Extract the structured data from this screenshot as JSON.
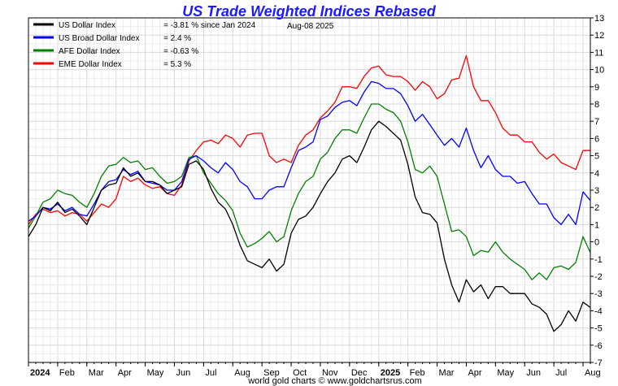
{
  "chart_data": {
    "type": "line",
    "title": "US Trade Weighted Indices Rebased",
    "date_label": "Aug-08  2025",
    "footer": "world gold charts © www.goldchartsrus.com",
    "grid": true,
    "legend_placement": "top-left",
    "ylim": [
      -7,
      13
    ],
    "yticks": [
      -7,
      -6,
      -5,
      -4,
      -3,
      -2,
      -1,
      0,
      1,
      2,
      3,
      4,
      5,
      6,
      7,
      8,
      9,
      10,
      11,
      12,
      13
    ],
    "xlim": [
      0,
      19.25
    ],
    "xticks": [
      {
        "label": "2024",
        "pos": 0,
        "bold": true
      },
      {
        "label": "Feb",
        "pos": 1
      },
      {
        "label": "Mar",
        "pos": 2
      },
      {
        "label": "Apr",
        "pos": 3
      },
      {
        "label": "May",
        "pos": 4
      },
      {
        "label": "Jun",
        "pos": 5
      },
      {
        "label": "Jul",
        "pos": 6
      },
      {
        "label": "Aug",
        "pos": 7
      },
      {
        "label": "Sep",
        "pos": 8
      },
      {
        "label": "Oct",
        "pos": 9
      },
      {
        "label": "Nov",
        "pos": 10
      },
      {
        "label": "Dec",
        "pos": 11
      },
      {
        "label": "2025",
        "pos": 12,
        "bold": true
      },
      {
        "label": "Feb",
        "pos": 13
      },
      {
        "label": "Mar",
        "pos": 14
      },
      {
        "label": "Apr",
        "pos": 15
      },
      {
        "label": "May",
        "pos": 16
      },
      {
        "label": "Jun",
        "pos": 17
      },
      {
        "label": "Jul",
        "pos": 18
      },
      {
        "label": "Aug",
        "pos": 19
      }
    ],
    "series": [
      {
        "name": "US Dollar Index",
        "legend_value": "= -3.81 % since Jan 2024",
        "color": "#000000",
        "x": [
          0,
          0.25,
          0.5,
          0.75,
          1,
          1.25,
          1.5,
          1.75,
          2,
          2.25,
          2.5,
          2.75,
          3,
          3.25,
          3.5,
          3.75,
          4,
          4.25,
          4.5,
          4.75,
          5,
          5.25,
          5.5,
          5.75,
          6,
          6.25,
          6.5,
          6.75,
          7,
          7.25,
          7.5,
          7.75,
          8,
          8.25,
          8.5,
          8.75,
          9,
          9.25,
          9.5,
          9.75,
          10,
          10.25,
          10.5,
          10.75,
          11,
          11.25,
          11.5,
          11.75,
          12,
          12.25,
          12.5,
          12.75,
          13,
          13.25,
          13.5,
          13.75,
          14,
          14.25,
          14.5,
          14.75,
          15,
          15.25,
          15.5,
          15.75,
          16,
          16.25,
          16.5,
          16.75,
          17,
          17.25,
          17.5,
          17.75,
          18,
          18.25,
          18.5,
          18.75,
          19,
          19.25
        ],
        "values": [
          0.3,
          1.0,
          2.0,
          1.8,
          2.3,
          1.7,
          1.9,
          1.5,
          1.0,
          2.0,
          3.0,
          3.3,
          3.4,
          4.3,
          3.8,
          4.0,
          3.5,
          3.5,
          3.3,
          2.8,
          3.0,
          3.2,
          4.5,
          4.7,
          4.2,
          3.1,
          2.3,
          1.9,
          1.0,
          -0.2,
          -1.1,
          -1.3,
          -1.5,
          -1.0,
          -1.7,
          -1.3,
          0.5,
          1.3,
          1.5,
          2.0,
          2.8,
          3.5,
          4.0,
          4.8,
          5.0,
          4.6,
          5.5,
          6.5,
          7.0,
          6.7,
          6.3,
          5.9,
          4.5,
          2.6,
          1.7,
          1.6,
          1.1,
          -1.0,
          -2.5,
          -3.5,
          -2.2,
          -2.9,
          -2.5,
          -3.3,
          -2.6,
          -2.6,
          -3.0,
          -3.0,
          -3.0,
          -3.6,
          -3.8,
          -4.2,
          -5.2,
          -4.8,
          -4.0,
          -4.6,
          -3.5,
          -3.81
        ]
      },
      {
        "name": "US Broad Dollar Index",
        "legend_value": "= 2.4 %",
        "color": "#0000ff",
        "x": [
          0,
          0.25,
          0.5,
          0.75,
          1,
          1.25,
          1.5,
          1.75,
          2,
          2.25,
          2.5,
          2.75,
          3,
          3.25,
          3.5,
          3.75,
          4,
          4.25,
          4.5,
          4.75,
          5,
          5.25,
          5.5,
          5.75,
          6,
          6.25,
          6.5,
          6.75,
          7,
          7.25,
          7.5,
          7.75,
          8,
          8.25,
          8.5,
          8.75,
          9,
          9.25,
          9.5,
          9.75,
          10,
          10.25,
          10.5,
          10.75,
          11,
          11.25,
          11.5,
          11.75,
          12,
          12.25,
          12.5,
          12.75,
          13,
          13.25,
          13.5,
          13.75,
          14,
          14.25,
          14.5,
          14.75,
          15,
          15.25,
          15.5,
          15.75,
          16,
          16.25,
          16.5,
          16.75,
          17,
          17.25,
          17.5,
          17.75,
          18,
          18.25,
          18.5,
          18.75,
          19,
          19.25
        ],
        "values": [
          1.2,
          1.5,
          2.0,
          1.9,
          2.2,
          1.8,
          2.0,
          1.6,
          1.5,
          2.2,
          3.0,
          3.5,
          3.6,
          4.2,
          3.9,
          4.1,
          3.5,
          3.4,
          3.3,
          3.0,
          3.0,
          3.5,
          4.8,
          5.0,
          4.7,
          4.3,
          4.0,
          4.6,
          4.2,
          3.5,
          3.2,
          2.5,
          2.5,
          3.0,
          3.2,
          3.2,
          4.3,
          5.3,
          5.5,
          5.8,
          7.1,
          7.3,
          7.8,
          8.1,
          8.2,
          7.9,
          8.7,
          9.3,
          9.2,
          8.9,
          8.9,
          8.6,
          7.9,
          7.0,
          7.4,
          6.8,
          6.2,
          5.6,
          6.0,
          5.5,
          6.6,
          5.3,
          4.3,
          5.0,
          4.2,
          3.8,
          3.8,
          3.4,
          3.5,
          2.8,
          2.2,
          2.2,
          1.4,
          1.0,
          1.6,
          1.0,
          2.9,
          2.4
        ]
      },
      {
        "name": "AFE Dollar Index",
        "legend_value": "= -0.63 %",
        "color": "#008000",
        "x": [
          0,
          0.25,
          0.5,
          0.75,
          1,
          1.25,
          1.5,
          1.75,
          2,
          2.25,
          2.5,
          2.75,
          3,
          3.25,
          3.5,
          3.75,
          4,
          4.25,
          4.5,
          4.75,
          5,
          5.25,
          5.5,
          5.75,
          6,
          6.25,
          6.5,
          6.75,
          7,
          7.25,
          7.5,
          7.75,
          8,
          8.25,
          8.5,
          8.75,
          9,
          9.25,
          9.5,
          9.75,
          10,
          10.25,
          10.5,
          10.75,
          11,
          11.25,
          11.5,
          11.75,
          12,
          12.25,
          12.5,
          12.75,
          13,
          13.25,
          13.5,
          13.75,
          14,
          14.25,
          14.5,
          14.75,
          15,
          15.25,
          15.5,
          15.75,
          16,
          16.25,
          16.5,
          16.75,
          17,
          17.25,
          17.5,
          17.75,
          18,
          18.25,
          18.5,
          18.75,
          19,
          19.25
        ],
        "values": [
          0.8,
          1.5,
          2.3,
          2.5,
          3.0,
          2.8,
          2.7,
          2.3,
          2.0,
          2.8,
          3.8,
          4.4,
          4.5,
          4.9,
          4.6,
          4.7,
          4.2,
          4.3,
          3.8,
          3.4,
          3.5,
          3.8,
          4.9,
          5.0,
          4.0,
          3.4,
          2.8,
          2.4,
          1.8,
          0.5,
          -0.3,
          -0.1,
          0.2,
          0.6,
          0.0,
          0.3,
          1.8,
          2.8,
          3.5,
          3.8,
          4.8,
          5.2,
          6.0,
          6.5,
          6.5,
          6.3,
          7.2,
          8.0,
          8.0,
          7.7,
          7.5,
          7.0,
          5.8,
          4.2,
          4.0,
          4.4,
          3.8,
          2.2,
          0.6,
          0.7,
          0.3,
          -0.8,
          -0.5,
          -0.6,
          0.0,
          -0.6,
          -1.0,
          -1.3,
          -1.6,
          -2.2,
          -1.8,
          -2.2,
          -1.5,
          -1.4,
          -1.6,
          -1.2,
          0.3,
          -0.63
        ]
      },
      {
        "name": "EME Dollar Index",
        "legend_value": "= 5.3 %",
        "color": "#ff0000",
        "x": [
          0,
          0.25,
          0.5,
          0.75,
          1,
          1.25,
          1.5,
          1.75,
          2,
          2.25,
          2.5,
          2.75,
          3,
          3.25,
          3.5,
          3.75,
          4,
          4.25,
          4.5,
          4.75,
          5,
          5.25,
          5.5,
          5.75,
          6,
          6.25,
          6.5,
          6.75,
          7,
          7.25,
          7.5,
          7.75,
          8,
          8.25,
          8.5,
          8.75,
          9,
          9.25,
          9.5,
          9.75,
          10,
          10.25,
          10.5,
          10.75,
          11,
          11.25,
          11.5,
          11.75,
          12,
          12.25,
          12.5,
          12.75,
          13,
          13.25,
          13.5,
          13.75,
          14,
          14.25,
          14.5,
          14.75,
          15,
          15.25,
          15.5,
          15.75,
          16,
          16.25,
          16.5,
          16.75,
          17,
          17.25,
          17.5,
          17.75,
          18,
          18.25,
          18.5,
          18.75,
          19,
          19.25
        ],
        "values": [
          1.0,
          1.6,
          1.9,
          1.7,
          1.8,
          1.5,
          1.7,
          1.6,
          1.2,
          1.7,
          2.2,
          2.0,
          2.5,
          3.8,
          3.5,
          3.7,
          3.3,
          3.1,
          3.2,
          2.8,
          2.7,
          3.3,
          4.7,
          5.3,
          5.8,
          5.9,
          5.7,
          6.2,
          6.0,
          5.5,
          6.2,
          6.3,
          6.3,
          5.0,
          4.6,
          4.8,
          4.6,
          5.6,
          6.2,
          6.5,
          7.2,
          7.6,
          8.1,
          9.0,
          9.0,
          8.9,
          9.6,
          10.1,
          10.2,
          9.7,
          9.6,
          9.6,
          9.3,
          8.8,
          9.3,
          9.0,
          8.3,
          8.6,
          9.4,
          9.5,
          10.8,
          9.0,
          8.2,
          8.2,
          7.5,
          6.6,
          6.2,
          6.2,
          5.8,
          5.8,
          5.2,
          4.8,
          5.1,
          4.6,
          4.4,
          4.2,
          5.3,
          5.3
        ]
      }
    ]
  }
}
